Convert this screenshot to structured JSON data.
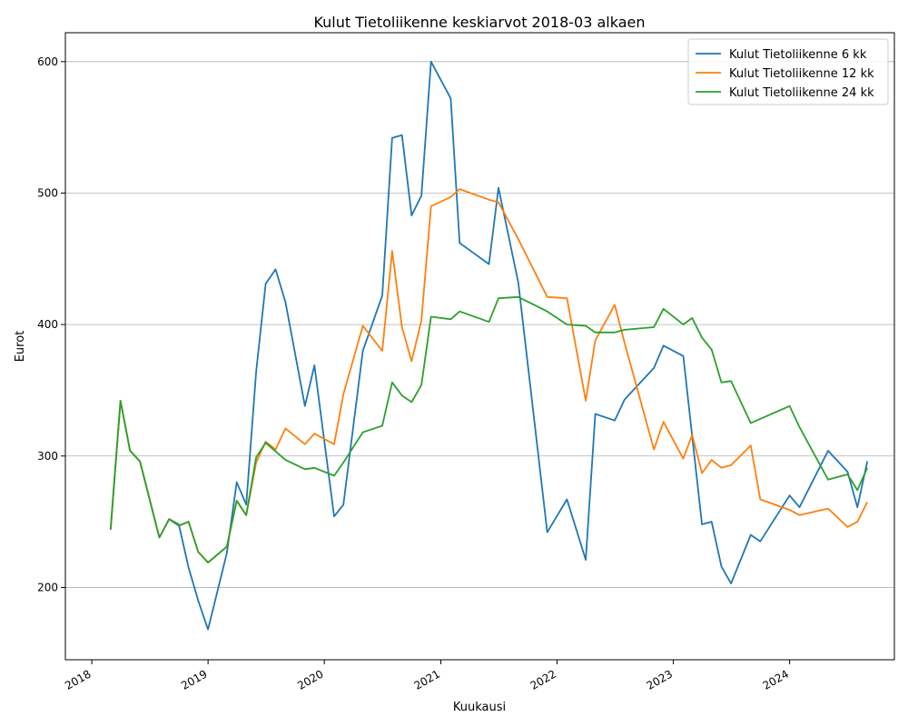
{
  "chart_data": {
    "type": "line",
    "title": "Kulut Tietoliikenne keskiarvot 2018-03 alkaen",
    "xlabel": "Kuukausi",
    "ylabel": "Eurot",
    "xlim": [
      "2017-10-10",
      "2024-11-25"
    ],
    "ylim": [
      145,
      622
    ],
    "x_ticks": [
      {
        "date": "2018-01-01",
        "label": "2018"
      },
      {
        "date": "2019-01-01",
        "label": "2019"
      },
      {
        "date": "2020-01-01",
        "label": "2020"
      },
      {
        "date": "2021-01-01",
        "label": "2021"
      },
      {
        "date": "2022-01-01",
        "label": "2022"
      },
      {
        "date": "2023-01-01",
        "label": "2023"
      },
      {
        "date": "2024-01-01",
        "label": "2024"
      }
    ],
    "y_ticks": [
      200,
      300,
      400,
      500,
      600
    ],
    "grid": "y",
    "legend": "top-right",
    "series": [
      {
        "name": "Kulut Tietoliikenne 6 kk",
        "color": "#1f77b4",
        "points": [
          [
            "2018-03-01",
            244
          ],
          [
            "2018-04-01",
            342
          ],
          [
            "2018-05-01",
            304
          ],
          [
            "2018-06-01",
            296
          ],
          [
            "2018-08-01",
            238
          ],
          [
            "2018-09-01",
            252
          ],
          [
            "2018-10-01",
            248
          ],
          [
            "2018-11-01",
            215
          ],
          [
            "2018-12-01",
            190
          ],
          [
            "2019-01-01",
            168
          ],
          [
            "2019-03-01",
            226
          ],
          [
            "2019-04-01",
            280
          ],
          [
            "2019-05-01",
            263
          ],
          [
            "2019-06-01",
            364
          ],
          [
            "2019-07-01",
            431
          ],
          [
            "2019-08-01",
            442
          ],
          [
            "2019-09-01",
            417
          ],
          [
            "2019-11-01",
            338
          ],
          [
            "2019-12-01",
            369
          ],
          [
            "2020-02-01",
            254
          ],
          [
            "2020-03-01",
            263
          ],
          [
            "2020-05-01",
            380
          ],
          [
            "2020-07-01",
            422
          ],
          [
            "2020-08-01",
            542
          ],
          [
            "2020-09-01",
            544
          ],
          [
            "2020-10-01",
            483
          ],
          [
            "2020-11-01",
            498
          ],
          [
            "2020-12-01",
            600
          ],
          [
            "2021-02-01",
            572
          ],
          [
            "2021-03-01",
            462
          ],
          [
            "2021-06-01",
            446
          ],
          [
            "2021-07-01",
            504
          ],
          [
            "2021-09-01",
            432
          ],
          [
            "2021-12-01",
            242
          ],
          [
            "2022-02-01",
            267
          ],
          [
            "2022-04-01",
            221
          ],
          [
            "2022-05-01",
            332
          ],
          [
            "2022-07-01",
            327
          ],
          [
            "2022-08-01",
            343
          ],
          [
            "2022-11-01",
            367
          ],
          [
            "2022-12-01",
            384
          ],
          [
            "2023-02-01",
            376
          ],
          [
            "2023-04-01",
            248
          ],
          [
            "2023-05-01",
            250
          ],
          [
            "2023-06-01",
            216
          ],
          [
            "2023-07-01",
            203
          ],
          [
            "2023-09-01",
            240
          ],
          [
            "2023-10-01",
            235
          ],
          [
            "2024-01-01",
            270
          ],
          [
            "2024-02-01",
            261
          ],
          [
            "2024-05-01",
            304
          ],
          [
            "2024-07-01",
            288
          ],
          [
            "2024-08-01",
            261
          ],
          [
            "2024-09-01",
            296
          ]
        ]
      },
      {
        "name": "Kulut Tietoliikenne 12 kk",
        "color": "#ff7f0e",
        "points": [
          [
            "2018-03-01",
            244
          ],
          [
            "2018-04-01",
            342
          ],
          [
            "2018-05-01",
            304
          ],
          [
            "2018-06-01",
            296
          ],
          [
            "2018-08-01",
            238
          ],
          [
            "2018-09-01",
            252
          ],
          [
            "2018-10-01",
            247
          ],
          [
            "2018-11-01",
            250
          ],
          [
            "2018-12-01",
            227
          ],
          [
            "2019-01-01",
            219
          ],
          [
            "2019-03-01",
            231
          ],
          [
            "2019-04-01",
            266
          ],
          [
            "2019-05-01",
            255
          ],
          [
            "2019-06-01",
            295
          ],
          [
            "2019-07-01",
            311
          ],
          [
            "2019-08-01",
            305
          ],
          [
            "2019-09-01",
            321
          ],
          [
            "2019-11-01",
            309
          ],
          [
            "2019-12-01",
            317
          ],
          [
            "2020-02-01",
            309
          ],
          [
            "2020-03-01",
            347
          ],
          [
            "2020-05-01",
            399
          ],
          [
            "2020-07-01",
            380
          ],
          [
            "2020-08-01",
            456
          ],
          [
            "2020-09-01",
            398
          ],
          [
            "2020-10-01",
            372
          ],
          [
            "2020-11-01",
            403
          ],
          [
            "2020-12-01",
            490
          ],
          [
            "2021-02-01",
            497
          ],
          [
            "2021-03-01",
            503
          ],
          [
            "2021-06-01",
            495
          ],
          [
            "2021-07-01",
            493
          ],
          [
            "2021-09-01",
            465
          ],
          [
            "2021-12-01",
            421
          ],
          [
            "2022-02-01",
            420
          ],
          [
            "2022-04-01",
            342
          ],
          [
            "2022-05-01",
            388
          ],
          [
            "2022-07-01",
            415
          ],
          [
            "2022-08-01",
            386
          ],
          [
            "2022-11-01",
            305
          ],
          [
            "2022-12-01",
            326
          ],
          [
            "2023-02-01",
            298
          ],
          [
            "2023-03-01",
            316
          ],
          [
            "2023-04-01",
            287
          ],
          [
            "2023-05-01",
            297
          ],
          [
            "2023-06-01",
            291
          ],
          [
            "2023-07-01",
            293
          ],
          [
            "2023-09-01",
            308
          ],
          [
            "2023-10-01",
            267
          ],
          [
            "2024-01-01",
            259
          ],
          [
            "2024-02-01",
            255
          ],
          [
            "2024-05-01",
            260
          ],
          [
            "2024-07-01",
            246
          ],
          [
            "2024-08-01",
            250
          ],
          [
            "2024-09-01",
            265
          ]
        ]
      },
      {
        "name": "Kulut Tietoliikenne 24 kk",
        "color": "#2ca02c",
        "points": [
          [
            "2018-03-01",
            244
          ],
          [
            "2018-04-01",
            342
          ],
          [
            "2018-05-01",
            304
          ],
          [
            "2018-06-01",
            296
          ],
          [
            "2018-08-01",
            238
          ],
          [
            "2018-09-01",
            252
          ],
          [
            "2018-10-01",
            247
          ],
          [
            "2018-11-01",
            250
          ],
          [
            "2018-12-01",
            227
          ],
          [
            "2019-01-01",
            219
          ],
          [
            "2019-03-01",
            231
          ],
          [
            "2019-04-01",
            266
          ],
          [
            "2019-05-01",
            255
          ],
          [
            "2019-06-01",
            299
          ],
          [
            "2019-07-01",
            310
          ],
          [
            "2019-09-01",
            297
          ],
          [
            "2019-11-01",
            290
          ],
          [
            "2019-12-01",
            291
          ],
          [
            "2020-02-01",
            285
          ],
          [
            "2020-03-01",
            295
          ],
          [
            "2020-05-01",
            318
          ],
          [
            "2020-07-01",
            323
          ],
          [
            "2020-08-01",
            356
          ],
          [
            "2020-09-01",
            346
          ],
          [
            "2020-10-01",
            341
          ],
          [
            "2020-11-01",
            354
          ],
          [
            "2020-12-01",
            406
          ],
          [
            "2021-02-01",
            404
          ],
          [
            "2021-03-01",
            410
          ],
          [
            "2021-06-01",
            402
          ],
          [
            "2021-07-01",
            420
          ],
          [
            "2021-09-01",
            421
          ],
          [
            "2021-12-01",
            410
          ],
          [
            "2022-02-01",
            400
          ],
          [
            "2022-04-01",
            399
          ],
          [
            "2022-05-01",
            394
          ],
          [
            "2022-07-01",
            394
          ],
          [
            "2022-08-01",
            396
          ],
          [
            "2022-11-01",
            398
          ],
          [
            "2022-12-01",
            412
          ],
          [
            "2023-02-01",
            400
          ],
          [
            "2023-03-01",
            405
          ],
          [
            "2023-04-01",
            390
          ],
          [
            "2023-05-01",
            381
          ],
          [
            "2023-06-01",
            356
          ],
          [
            "2023-07-01",
            357
          ],
          [
            "2023-09-01",
            325
          ],
          [
            "2024-01-01",
            338
          ],
          [
            "2024-02-01",
            322
          ],
          [
            "2024-05-01",
            282
          ],
          [
            "2024-07-01",
            286
          ],
          [
            "2024-08-01",
            274
          ],
          [
            "2024-09-01",
            291
          ]
        ]
      }
    ]
  }
}
